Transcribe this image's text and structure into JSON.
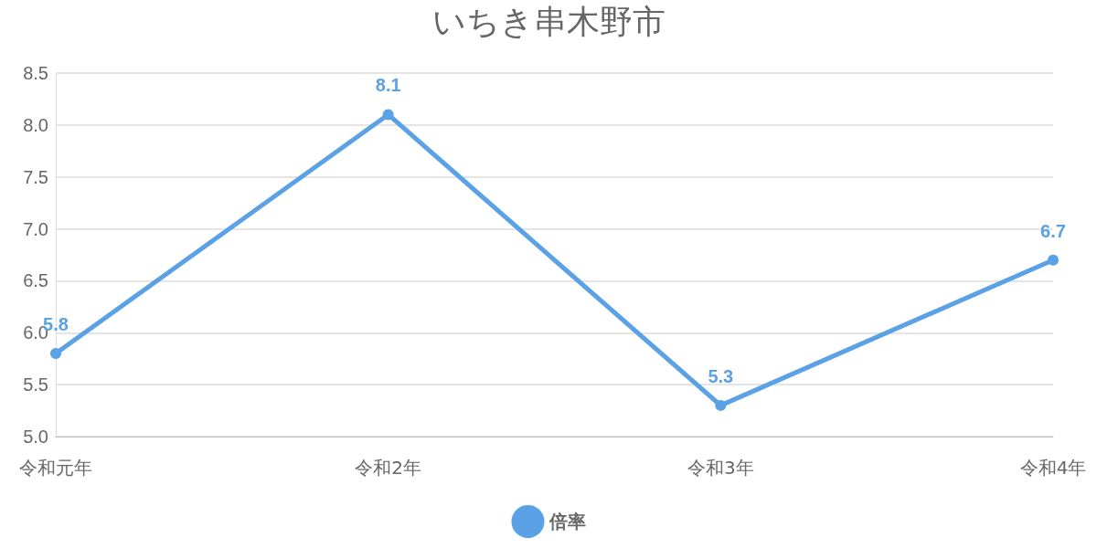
{
  "chart_data": {
    "type": "line",
    "title": "いちき串木野市",
    "categories": [
      "令和元年",
      "令和2年",
      "令和3年",
      "令和4年"
    ],
    "series": [
      {
        "name": "倍率",
        "color": "#5ba1e5",
        "values": [
          5.8,
          8.1,
          5.3,
          6.7
        ]
      }
    ],
    "ylim": [
      5,
      8.5
    ],
    "yticks": [
      {
        "value": 5,
        "label": "5.0"
      },
      5.5,
      {
        "value": 6,
        "label": "6.0"
      },
      6.5,
      {
        "value": 7,
        "label": "7.0"
      },
      7.5,
      {
        "value": 8,
        "label": "8.0"
      },
      8.5
    ],
    "grid": "y",
    "legend": "bottom",
    "marker": "circle",
    "line_style": "solid",
    "data_labels": true
  }
}
